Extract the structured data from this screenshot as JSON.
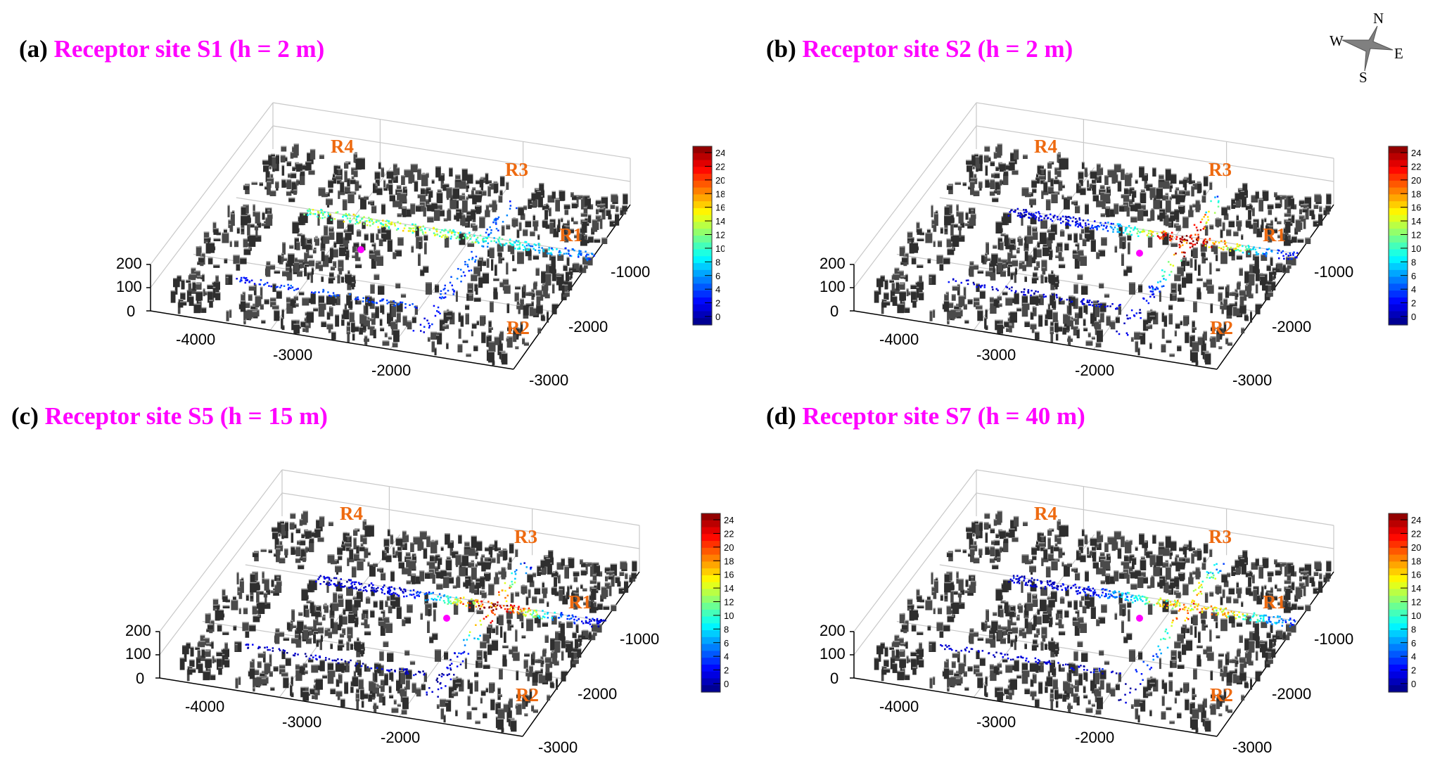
{
  "compass": {
    "n": "N",
    "e": "E",
    "s": "S",
    "w": "W"
  },
  "panels": [
    {
      "label": "(a)",
      "title": "Receptor site S1 (h = 2 m)"
    },
    {
      "label": "(b)",
      "title": "Receptor site S2 (h = 2 m)"
    },
    {
      "label": "(c)",
      "title": "Receptor site S5 (h = 15 m)"
    },
    {
      "label": "(d)",
      "title": "Receptor site S7 (h = 40 m)"
    }
  ],
  "axes": {
    "z_ticks": [
      "200",
      "100",
      "0"
    ],
    "x_ticks": [
      "-4000",
      "-3000",
      "-2000"
    ],
    "y_ticks": [
      "-1000",
      "-2000",
      "-3000"
    ]
  },
  "roads": [
    "R1",
    "R2",
    "R3",
    "R4"
  ],
  "colorbar": {
    "ticks": [
      "24",
      "22",
      "20",
      "18",
      "16",
      "14",
      "12",
      "10",
      "8",
      "6",
      "4",
      "2",
      "0"
    ],
    "range": [
      0,
      24
    ],
    "colormap": "jet"
  },
  "colors": {
    "title": "#ff00ff",
    "road_label": "#ee6a10",
    "receptor_marker": "#ff00ff",
    "buildings": "#3a3a3a",
    "compass": "#808080"
  }
}
